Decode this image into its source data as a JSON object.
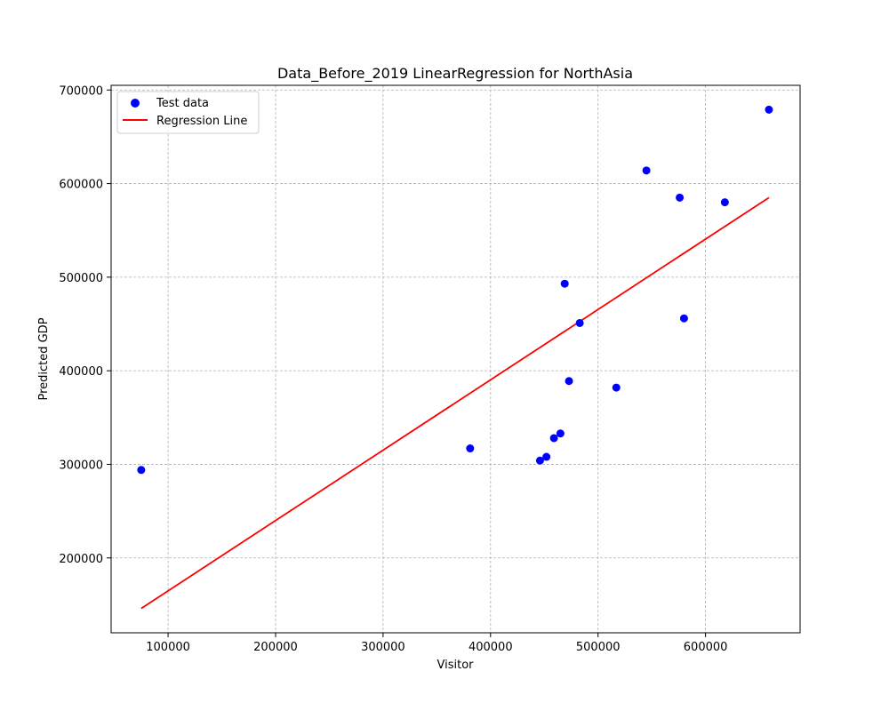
{
  "chart_data": {
    "type": "scatter",
    "title": "Data_Before_2019 LinearRegression for NorthAsia",
    "xlabel": "Visitor",
    "ylabel": "Predicted GDP",
    "xlim": [
      47000,
      688000
    ],
    "ylim": [
      120000,
      705000
    ],
    "xticks": [
      100000,
      200000,
      300000,
      400000,
      500000,
      600000
    ],
    "yticks": [
      200000,
      300000,
      400000,
      500000,
      600000,
      700000
    ],
    "grid": true,
    "legend_position": "top-left",
    "series": [
      {
        "name": "Test data",
        "kind": "scatter",
        "color": "#0000ff",
        "points": [
          {
            "x": 75000,
            "y": 294000
          },
          {
            "x": 381000,
            "y": 317000
          },
          {
            "x": 446000,
            "y": 304000
          },
          {
            "x": 452000,
            "y": 308000
          },
          {
            "x": 459000,
            "y": 328000
          },
          {
            "x": 465000,
            "y": 333000
          },
          {
            "x": 469000,
            "y": 493000
          },
          {
            "x": 473000,
            "y": 389000
          },
          {
            "x": 483000,
            "y": 451000
          },
          {
            "x": 517000,
            "y": 382000
          },
          {
            "x": 545000,
            "y": 614000
          },
          {
            "x": 576000,
            "y": 585000
          },
          {
            "x": 580000,
            "y": 456000
          },
          {
            "x": 618000,
            "y": 580000
          },
          {
            "x": 659000,
            "y": 679000
          }
        ]
      },
      {
        "name": "Regression Line",
        "kind": "line",
        "color": "#ff0000",
        "points": [
          {
            "x": 75000,
            "y": 146000
          },
          {
            "x": 659000,
            "y": 585000
          }
        ]
      }
    ]
  }
}
